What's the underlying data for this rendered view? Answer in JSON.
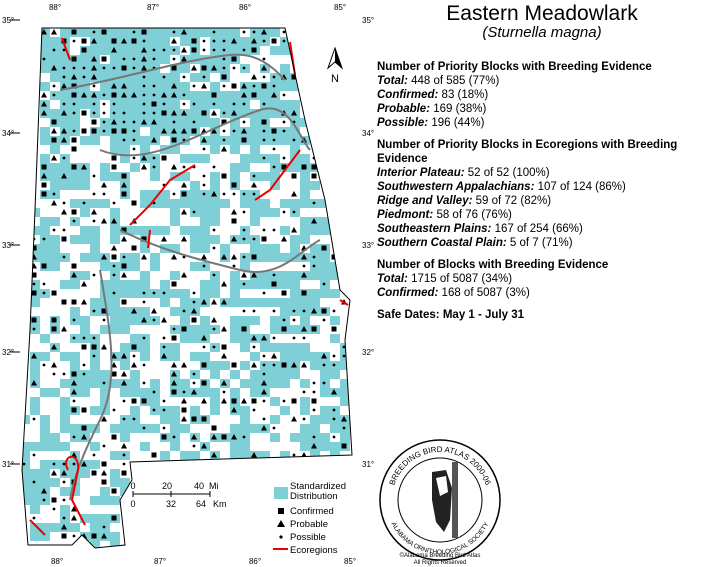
{
  "header": {
    "title": "Eastern Meadowlark",
    "subtitle": "Sturnella magna"
  },
  "sections": [
    {
      "heading": "Number of Priority Blocks with Breeding Evidence",
      "rows": [
        {
          "label": "Total:",
          "text": "448 of 585 (77%)"
        },
        {
          "label": "Confirmed:",
          "text": "83 (18%)"
        },
        {
          "label": "Probable:",
          "text": "169 (38%)"
        },
        {
          "label": "Possible:",
          "text": "196 (44%)"
        }
      ]
    },
    {
      "heading": "Number of Priority Blocks in Ecoregions with Breeding Evidence",
      "rows": [
        {
          "label": "Interior Plateau:",
          "text": "52 of 52 (100%)"
        },
        {
          "label": "Southwestern Appalachians:",
          "text": "107 of 124 (86%)"
        },
        {
          "label": "Ridge and Valley:",
          "text": "59 of 72 (82%)"
        },
        {
          "label": "Piedmont:",
          "text": "58 of 76 (76%)"
        },
        {
          "label": "Southeastern Plains:",
          "text": "167 of 254 (66%)"
        },
        {
          "label": "Southern Coastal Plain:",
          "text": "5 of 7 (71%)"
        }
      ]
    },
    {
      "heading": "Number of Blocks with Breeding Evidence",
      "rows": [
        {
          "label": "Total:",
          "text": "1715 of 5087 (34%)"
        },
        {
          "label": "Confirmed:",
          "text": "168 of 5087 (3%)"
        }
      ]
    }
  ],
  "safe_dates": {
    "label": "Safe Dates:",
    "text": "May 1 - July 31"
  },
  "map": {
    "north": "N",
    "lat_labels": [
      "35°",
      "34°",
      "33°",
      "32°",
      "31°"
    ],
    "lon_labels": [
      "88°",
      "87°",
      "86°",
      "85°"
    ],
    "scale": {
      "miles": [
        "0",
        "20",
        "40"
      ],
      "miles_unit": "Mi",
      "km": [
        "0",
        "32",
        "64"
      ],
      "km_unit": "Km"
    }
  },
  "legend": [
    "Standardized Distribution",
    "Confirmed",
    "Probable",
    "Possible",
    "Ecoregions"
  ],
  "logo": {
    "ring_top": "BREEDING BIRD ATLAS 2000-06",
    "ring_bottom": "ALABAMA ORNITHOLOGICAL SOCIETY",
    "credit": "©Alabama Breeding Bird Atlas",
    "rights": "All Rights Reserved"
  }
}
